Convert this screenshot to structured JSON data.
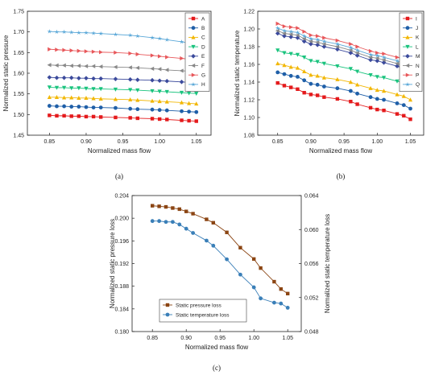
{
  "chart_data": [
    {
      "type": "line",
      "panel_label": "(a)",
      "xlabel": "Normalized mass flow",
      "ylabel": "Normalized static pressure",
      "xlim": [
        0.82,
        1.07
      ],
      "ylim": [
        1.45,
        1.75
      ],
      "xticks": [
        "0.85",
        "0.90",
        "0.95",
        "1.00",
        "1.05"
      ],
      "yticks": [
        "1.45",
        "1.50",
        "1.55",
        "1.60",
        "1.65",
        "1.70",
        "1.75"
      ],
      "legend_position": "top-right",
      "x": [
        0.85,
        0.86,
        0.87,
        0.88,
        0.89,
        0.9,
        0.91,
        0.92,
        0.94,
        0.96,
        0.97,
        0.99,
        1.0,
        1.01,
        1.03,
        1.04,
        1.05
      ],
      "series": [
        {
          "name": "A",
          "color": "#e41a1c",
          "marker": "square",
          "values": [
            1.498,
            1.497,
            1.497,
            1.496,
            1.496,
            1.495,
            1.495,
            1.494,
            1.493,
            1.492,
            1.491,
            1.49,
            1.489,
            1.488,
            1.486,
            1.485,
            1.484
          ]
        },
        {
          "name": "B",
          "color": "#1f5fa8",
          "marker": "circle",
          "values": [
            1.521,
            1.52,
            1.52,
            1.519,
            1.519,
            1.518,
            1.517,
            1.517,
            1.516,
            1.514,
            1.513,
            1.512,
            1.511,
            1.51,
            1.508,
            1.507,
            1.506
          ]
        },
        {
          "name": "C",
          "color": "#f2b705",
          "marker": "triangle-up",
          "values": [
            1.542,
            1.542,
            1.541,
            1.541,
            1.54,
            1.54,
            1.539,
            1.538,
            1.537,
            1.536,
            1.535,
            1.533,
            1.532,
            1.531,
            1.529,
            1.527,
            1.526
          ]
        },
        {
          "name": "D",
          "color": "#19c37d",
          "marker": "triangle-down",
          "values": [
            1.566,
            1.565,
            1.565,
            1.564,
            1.564,
            1.563,
            1.562,
            1.562,
            1.561,
            1.56,
            1.559,
            1.557,
            1.556,
            1.555,
            1.553,
            1.552,
            1.551
          ]
        },
        {
          "name": "E",
          "color": "#3b4a9c",
          "marker": "diamond",
          "values": [
            1.59,
            1.589,
            1.589,
            1.589,
            1.588,
            1.588,
            1.587,
            1.587,
            1.586,
            1.585,
            1.584,
            1.583,
            1.582,
            1.581,
            1.579,
            1.578,
            1.577
          ]
        },
        {
          "name": "F",
          "color": "#888888",
          "marker": "triangle-left",
          "values": [
            1.62,
            1.619,
            1.619,
            1.618,
            1.618,
            1.617,
            1.617,
            1.616,
            1.615,
            1.614,
            1.613,
            1.611,
            1.61,
            1.608,
            1.606,
            1.605,
            1.604
          ]
        },
        {
          "name": "G",
          "color": "#e8575a",
          "marker": "triangle-right",
          "values": [
            1.658,
            1.657,
            1.656,
            1.655,
            1.654,
            1.653,
            1.652,
            1.651,
            1.65,
            1.648,
            1.646,
            1.643,
            1.641,
            1.639,
            1.636,
            1.634,
            1.632
          ]
        },
        {
          "name": "H",
          "color": "#5ba8d8",
          "marker": "star",
          "values": [
            1.701,
            1.7,
            1.7,
            1.699,
            1.698,
            1.698,
            1.697,
            1.696,
            1.694,
            1.692,
            1.69,
            1.686,
            1.684,
            1.681,
            1.676,
            1.673,
            1.671
          ]
        }
      ]
    },
    {
      "type": "line",
      "panel_label": "(b)",
      "xlabel": "Normalized mass flow",
      "ylabel": "Normalized static temperature",
      "xlim": [
        0.82,
        1.07
      ],
      "ylim": [
        1.08,
        1.22
      ],
      "xticks": [
        "0.85",
        "0.90",
        "0.95",
        "1.00",
        "1.05"
      ],
      "yticks": [
        "1.08",
        "1.10",
        "1.12",
        "1.14",
        "1.16",
        "1.18",
        "1.20",
        "1.22"
      ],
      "legend_position": "top-right",
      "x": [
        0.85,
        0.86,
        0.87,
        0.88,
        0.89,
        0.9,
        0.91,
        0.92,
        0.94,
        0.96,
        0.97,
        0.99,
        1.0,
        1.01,
        1.03,
        1.04,
        1.05
      ],
      "series": [
        {
          "name": "I",
          "color": "#e41a1c",
          "marker": "square",
          "values": [
            1.139,
            1.136,
            1.134,
            1.132,
            1.128,
            1.126,
            1.125,
            1.123,
            1.121,
            1.118,
            1.115,
            1.111,
            1.109,
            1.108,
            1.104,
            1.102,
            1.098
          ]
        },
        {
          "name": "J",
          "color": "#1f5fa8",
          "marker": "circle",
          "values": [
            1.151,
            1.149,
            1.147,
            1.146,
            1.142,
            1.138,
            1.137,
            1.135,
            1.133,
            1.13,
            1.127,
            1.123,
            1.121,
            1.12,
            1.116,
            1.114,
            1.11
          ]
        },
        {
          "name": "K",
          "color": "#f2b705",
          "marker": "triangle-up",
          "values": [
            1.161,
            1.159,
            1.157,
            1.156,
            1.152,
            1.148,
            1.147,
            1.145,
            1.143,
            1.14,
            1.137,
            1.133,
            1.131,
            1.13,
            1.126,
            1.124,
            1.12
          ]
        },
        {
          "name": "L",
          "color": "#19c37d",
          "marker": "triangle-down",
          "values": [
            1.176,
            1.173,
            1.172,
            1.171,
            1.168,
            1.164,
            1.163,
            1.161,
            1.158,
            1.155,
            1.152,
            1.148,
            1.146,
            1.145,
            1.141,
            1.139,
            1.135
          ]
        },
        {
          "name": "M",
          "color": "#3b4a9c",
          "marker": "diamond",
          "values": [
            1.195,
            1.192,
            1.191,
            1.19,
            1.186,
            1.183,
            1.182,
            1.18,
            1.177,
            1.173,
            1.17,
            1.165,
            1.164,
            1.162,
            1.158,
            1.155,
            1.151
          ]
        },
        {
          "name": "N",
          "color": "#888888",
          "marker": "triangle-left",
          "values": [
            1.198,
            1.195,
            1.194,
            1.193,
            1.189,
            1.186,
            1.185,
            1.183,
            1.18,
            1.176,
            1.173,
            1.168,
            1.167,
            1.165,
            1.161,
            1.158,
            1.154
          ]
        },
        {
          "name": "P",
          "color": "#e8575a",
          "marker": "triangle-right",
          "values": [
            1.206,
            1.203,
            1.202,
            1.201,
            1.197,
            1.193,
            1.192,
            1.19,
            1.187,
            1.183,
            1.18,
            1.175,
            1.173,
            1.172,
            1.168,
            1.166,
            1.162
          ]
        },
        {
          "name": "Q",
          "color": "#5ba8d8",
          "marker": "star",
          "values": [
            1.201,
            1.198,
            1.197,
            1.196,
            1.192,
            1.189,
            1.188,
            1.186,
            1.183,
            1.179,
            1.176,
            1.171,
            1.17,
            1.168,
            1.164,
            1.161,
            1.157
          ]
        }
      ]
    },
    {
      "type": "line",
      "panel_label": "(c)",
      "xlabel": "Normalized mass flow",
      "ylabel": "Normalized static pressure loss",
      "ylabel_right": "Normalized static temperature loss",
      "xlim": [
        0.82,
        1.07
      ],
      "ylim": [
        0.18,
        0.204
      ],
      "ylim_right": [
        0.048,
        0.064
      ],
      "xticks": [
        "0.85",
        "0.90",
        "0.95",
        "1.00",
        "1.05"
      ],
      "yticks": [
        "0.180",
        "0.184",
        "0.188",
        "0.192",
        "0.196",
        "0.200",
        "0.204"
      ],
      "yticks_right": [
        "0.048",
        "0.052",
        "0.056",
        "0.060",
        "0.064"
      ],
      "legend_position": "bottom-left",
      "x": [
        0.85,
        0.86,
        0.87,
        0.88,
        0.89,
        0.9,
        0.91,
        0.93,
        0.94,
        0.96,
        0.98,
        1.0,
        1.01,
        1.03,
        1.04,
        1.05
      ],
      "series": [
        {
          "name": "Static pressure loss",
          "color": "#8b4513",
          "marker": "square",
          "axis": "left",
          "values": [
            0.2022,
            0.2021,
            0.202,
            0.2018,
            0.2016,
            0.2012,
            0.2008,
            0.1998,
            0.1992,
            0.1975,
            0.1948,
            0.1928,
            0.1912,
            0.1888,
            0.1875,
            0.1867
          ]
        },
        {
          "name": "Static temperature loss",
          "color": "#3a7fb8",
          "marker": "circle",
          "axis": "right",
          "values": [
            0.061,
            0.061,
            0.0609,
            0.0609,
            0.0606,
            0.0601,
            0.0596,
            0.0587,
            0.0581,
            0.0565,
            0.0547,
            0.0532,
            0.0519,
            0.0514,
            0.0513,
            0.0508
          ]
        }
      ]
    }
  ]
}
